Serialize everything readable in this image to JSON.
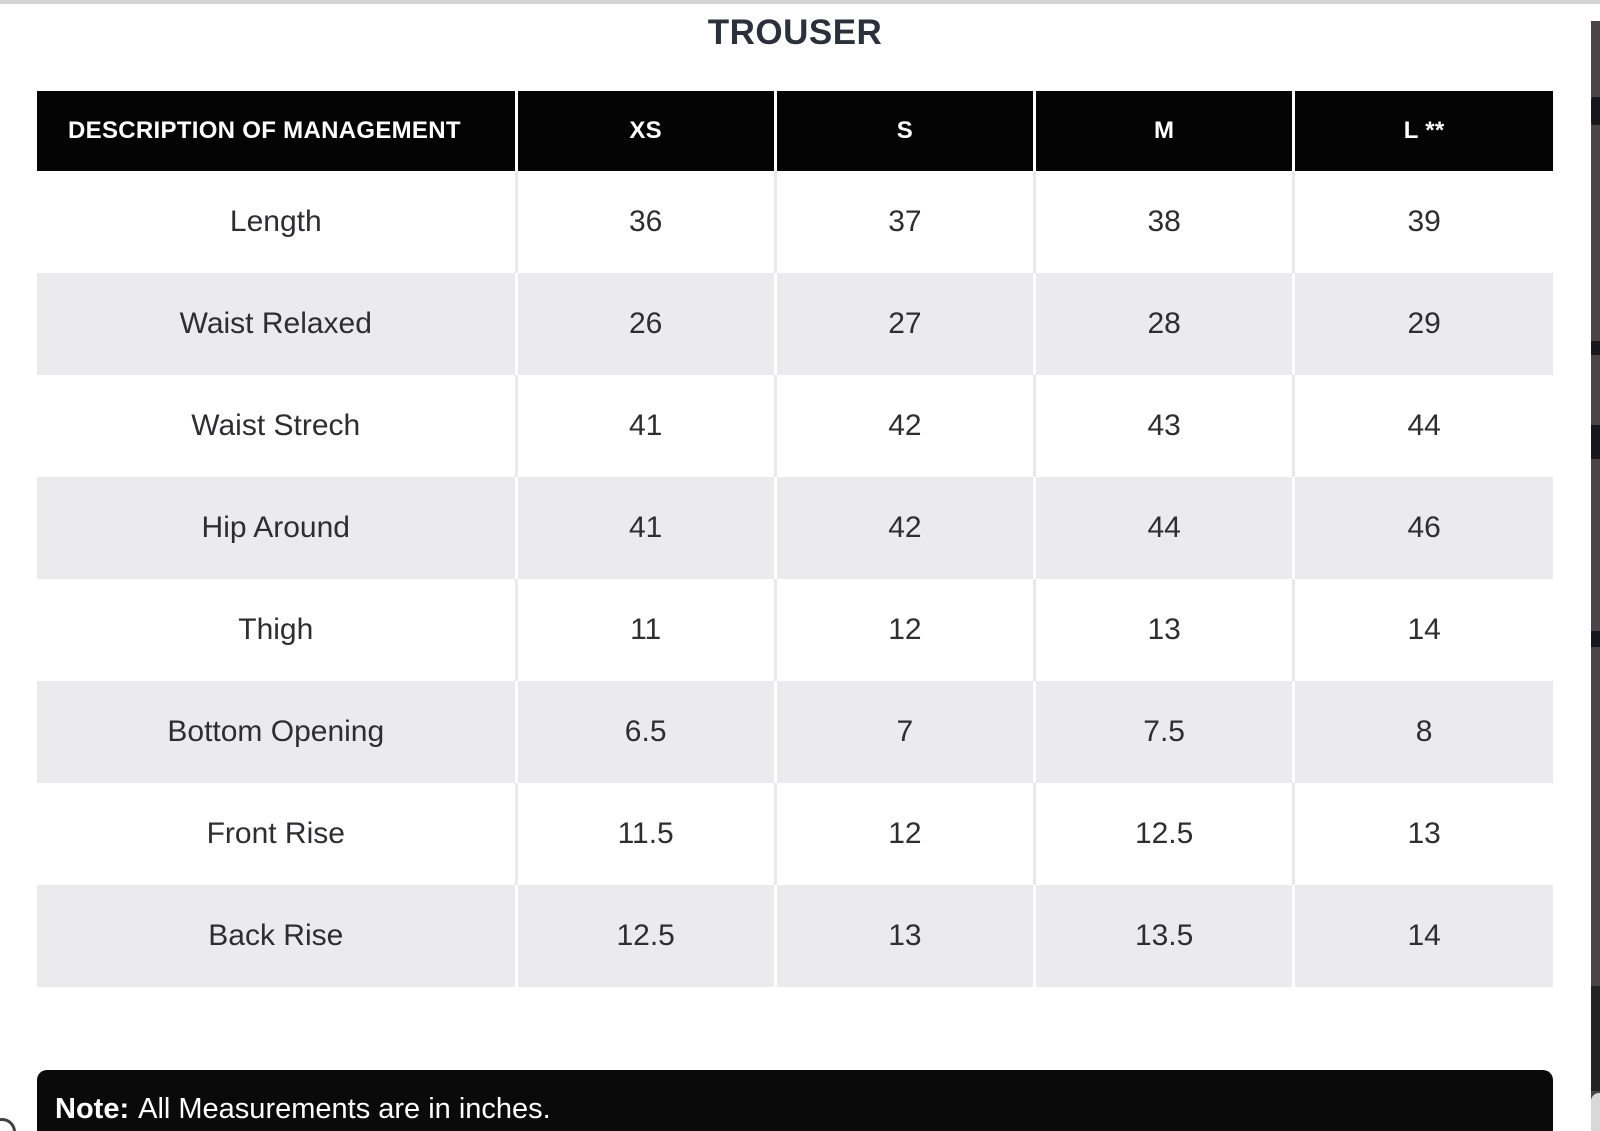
{
  "page": {
    "title": "TROUSER"
  },
  "table": {
    "columns": [
      "DESCRIPTION OF MANAGEMENT",
      "XS",
      "S",
      "M",
      "L **"
    ],
    "rows": [
      {
        "label": "Length",
        "values": [
          "36",
          "37",
          "38",
          "39"
        ]
      },
      {
        "label": "Waist Relaxed",
        "values": [
          "26",
          "27",
          "28",
          "29"
        ]
      },
      {
        "label": "Waist Strech",
        "values": [
          "41",
          "42",
          "43",
          "44"
        ]
      },
      {
        "label": "Hip Around",
        "values": [
          "41",
          "42",
          "44",
          "46"
        ]
      },
      {
        "label": "Thigh",
        "values": [
          "11",
          "12",
          "13",
          "14"
        ]
      },
      {
        "label": "Bottom Opening",
        "values": [
          "6.5",
          "7",
          "7.5",
          "8"
        ]
      },
      {
        "label": "Front Rise",
        "values": [
          "11.5",
          "12",
          "12.5",
          "13"
        ]
      },
      {
        "label": "Back Rise",
        "values": [
          "12.5",
          "13",
          "13.5",
          "14"
        ]
      }
    ]
  },
  "note": {
    "label": "Note:",
    "text": "All Measurements are in inches."
  },
  "colors": {
    "header_bg": "#040404",
    "header_text": "#ffffff",
    "row_alt_bg": "#ebebed",
    "body_text": "#2e2e32",
    "title_text": "#2b303a",
    "note_bg": "#0a0a0a",
    "top_strip": "#d5d5d7",
    "right_edge_strip": "#4b4347"
  }
}
